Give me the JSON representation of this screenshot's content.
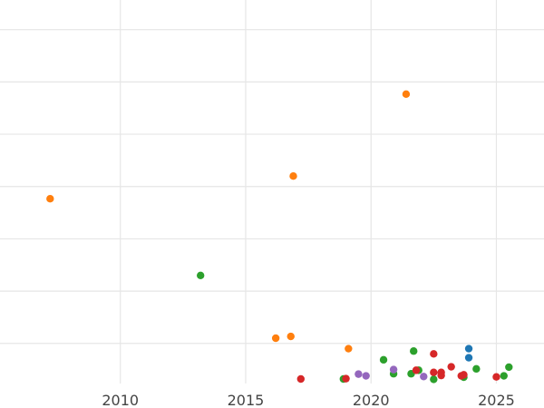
{
  "chart_data": {
    "type": "scatter",
    "title": "",
    "xlabel": "",
    "ylabel": "",
    "xlim": [
      2005.2,
      2026.9
    ],
    "ylim": [
      0,
      11
    ],
    "x_ticks": [
      2010,
      2015,
      2020,
      2025
    ],
    "x_tick_labels": [
      "2010",
      "2015",
      "2020",
      "2025"
    ],
    "y_gridlines": [
      1.15,
      2.65,
      4.15,
      5.65,
      7.15,
      8.65,
      10.15
    ],
    "grid": true,
    "legend": "none",
    "series": [
      {
        "color": "#ff7f0e",
        "points": [
          [
            2007.2,
            5.3
          ],
          [
            2016.2,
            1.3
          ],
          [
            2016.8,
            1.35
          ],
          [
            2016.9,
            5.95
          ],
          [
            2019.1,
            1.0
          ],
          [
            2021.4,
            8.3
          ]
        ]
      },
      {
        "color": "#2ca02c",
        "points": [
          [
            2013.2,
            3.1
          ],
          [
            2018.9,
            0.13
          ],
          [
            2020.5,
            0.68
          ],
          [
            2020.9,
            0.28
          ],
          [
            2021.6,
            0.28
          ],
          [
            2021.7,
            0.93
          ],
          [
            2021.9,
            0.38
          ],
          [
            2022.5,
            0.12
          ],
          [
            2023.7,
            0.18
          ],
          [
            2024.2,
            0.42
          ],
          [
            2025.3,
            0.22
          ],
          [
            2025.5,
            0.47
          ]
        ]
      },
      {
        "color": "#d62728",
        "points": [
          [
            2017.2,
            0.13
          ],
          [
            2019.0,
            0.14
          ],
          [
            2021.8,
            0.38
          ],
          [
            2022.5,
            0.32
          ],
          [
            2022.5,
            0.85
          ],
          [
            2022.8,
            0.32
          ],
          [
            2022.8,
            0.23
          ],
          [
            2023.2,
            0.48
          ],
          [
            2023.6,
            0.22
          ],
          [
            2023.7,
            0.25
          ],
          [
            2025.0,
            0.19
          ]
        ]
      },
      {
        "color": "#9467bd",
        "points": [
          [
            2019.5,
            0.27
          ],
          [
            2019.8,
            0.22
          ],
          [
            2020.9,
            0.4
          ],
          [
            2022.1,
            0.2
          ]
        ]
      },
      {
        "color": "#1f77b4",
        "points": [
          [
            2023.9,
            1.0
          ],
          [
            2023.9,
            0.74
          ]
        ]
      }
    ]
  }
}
